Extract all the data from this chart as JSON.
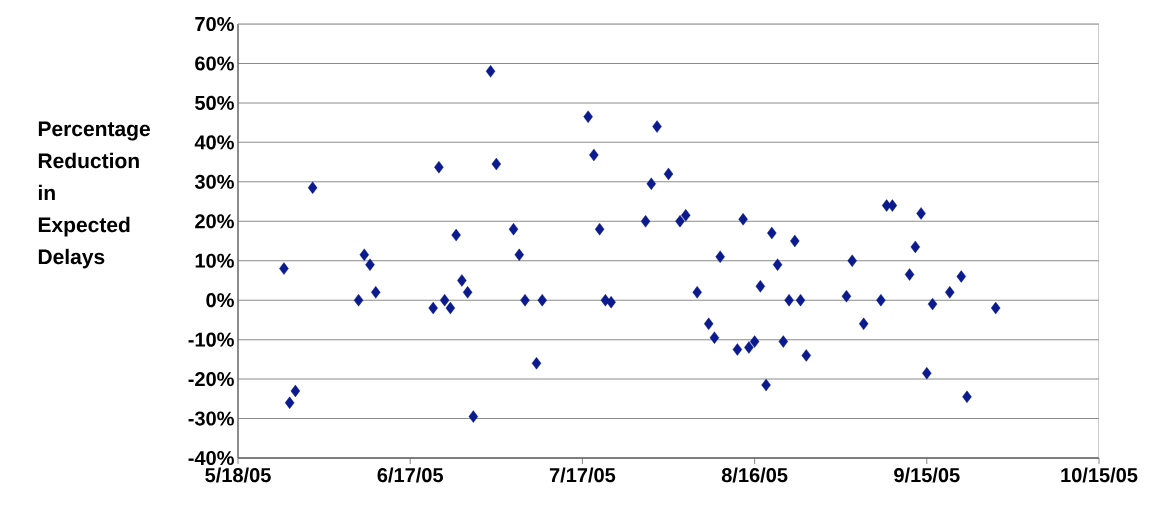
{
  "chart_data": {
    "type": "scatter",
    "ylabel": "Percentage Reduction in Expected Delays",
    "x": [
      "2005-05-26",
      "2005-05-27",
      "2005-05-28",
      "2005-05-31",
      "2005-06-08",
      "2005-06-09",
      "2005-06-10",
      "2005-06-11",
      "2005-06-21",
      "2005-06-22",
      "2005-06-23",
      "2005-06-24",
      "2005-06-25",
      "2005-06-26",
      "2005-06-27",
      "2005-06-28",
      "2005-07-01",
      "2005-07-02",
      "2005-07-05",
      "2005-07-06",
      "2005-07-07",
      "2005-07-09",
      "2005-07-10",
      "2005-07-18",
      "2005-07-19",
      "2005-07-20",
      "2005-07-21",
      "2005-07-22",
      "2005-07-28",
      "2005-07-29",
      "2005-07-30",
      "2005-08-01",
      "2005-08-03",
      "2005-08-04",
      "2005-08-06",
      "2005-08-08",
      "2005-08-09",
      "2005-08-10",
      "2005-08-13",
      "2005-08-14",
      "2005-08-15",
      "2005-08-16",
      "2005-08-17",
      "2005-08-18",
      "2005-08-19",
      "2005-08-20",
      "2005-08-21",
      "2005-08-22",
      "2005-08-23",
      "2005-08-24",
      "2005-08-25",
      "2005-09-01",
      "2005-09-02",
      "2005-09-04",
      "2005-09-07",
      "2005-09-08",
      "2005-09-09",
      "2005-09-12",
      "2005-09-13",
      "2005-09-14",
      "2005-09-15",
      "2005-09-16",
      "2005-09-19",
      "2005-09-21",
      "2005-09-22",
      "2005-09-27"
    ],
    "series": [
      {
        "color": "#0b1a8c",
        "values": [
          8,
          -26,
          -23,
          28.5,
          0,
          11.5,
          9,
          2,
          -2,
          33.7,
          0,
          -2,
          16.5,
          5,
          2,
          -29.5,
          58,
          34.5,
          18,
          11.5,
          0,
          -16,
          0,
          46.5,
          36.8,
          18,
          0,
          -0.5,
          20,
          29.5,
          44,
          32,
          20,
          21.5,
          2,
          -6,
          -9.5,
          11,
          -12.5,
          20.5,
          -12,
          -10.5,
          3.5,
          -21.5,
          17,
          9,
          -10.5,
          0,
          15,
          0,
          -14,
          1,
          10,
          -6,
          0,
          24,
          24,
          6.5,
          13.5,
          22,
          -18.5,
          -1,
          2,
          6,
          -24.5,
          -2
        ]
      }
    ],
    "xlim": [
      "2005-05-18",
      "2005-10-15"
    ],
    "xticks": [
      {
        "value": "2005-05-18",
        "label": "5/18/05"
      },
      {
        "value": "2005-06-17",
        "label": "6/17/05"
      },
      {
        "value": "2005-07-17",
        "label": "7/17/05"
      },
      {
        "value": "2005-08-16",
        "label": "8/16/05"
      },
      {
        "value": "2005-09-15",
        "label": "9/15/05"
      },
      {
        "value": "2005-10-15",
        "label": "10/15/05"
      }
    ],
    "ylim": [
      -40,
      70
    ],
    "yticks": [
      {
        "value": -40,
        "label": "-40%"
      },
      {
        "value": -30,
        "label": "-30%"
      },
      {
        "value": -20,
        "label": "-20%"
      },
      {
        "value": -10,
        "label": "-10%"
      },
      {
        "value": 0,
        "label": "0%"
      },
      {
        "value": 10,
        "label": "10%"
      },
      {
        "value": 20,
        "label": "20%"
      },
      {
        "value": 30,
        "label": "30%"
      },
      {
        "value": 40,
        "label": "40%"
      },
      {
        "value": 50,
        "label": "50%"
      },
      {
        "value": 60,
        "label": "60%"
      },
      {
        "value": 70,
        "label": "70%"
      }
    ],
    "grid": "y",
    "marker": "diamond"
  }
}
